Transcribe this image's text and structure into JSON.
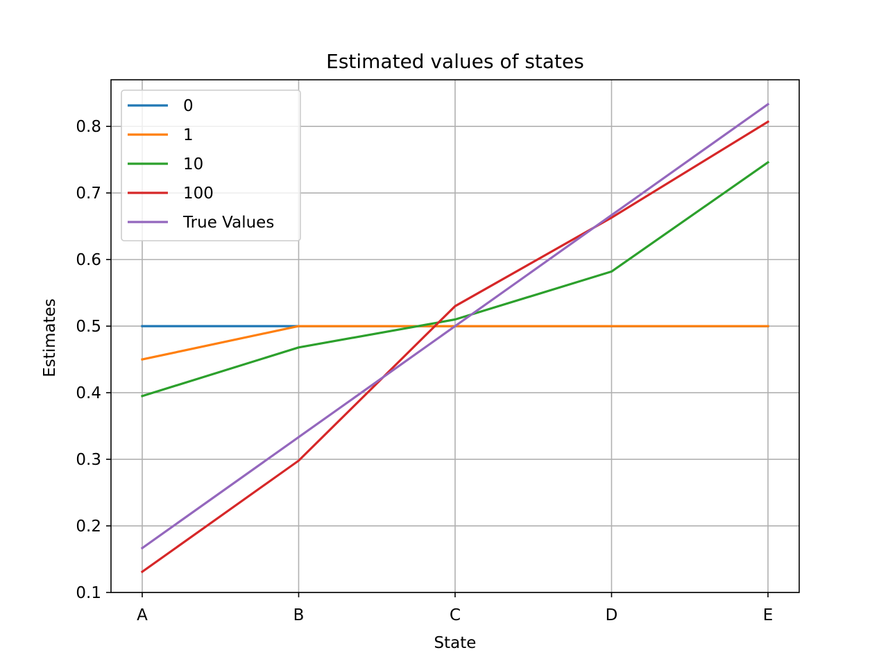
{
  "chart_data": {
    "type": "line",
    "title": "Estimated values of states",
    "xlabel": "State",
    "ylabel": "Estimates",
    "categories": [
      "A",
      "B",
      "C",
      "D",
      "E"
    ],
    "ylim": [
      0.1,
      0.87
    ],
    "yticks": [
      0.1,
      0.2,
      0.3,
      0.4,
      0.5,
      0.6,
      0.7,
      0.8
    ],
    "ytick_labels": [
      "0.1",
      "0.2",
      "0.3",
      "0.4",
      "0.5",
      "0.6",
      "0.7",
      "0.8"
    ],
    "grid": true,
    "legend_position": "top-left",
    "series": [
      {
        "name": "0",
        "color": "#1f77b4",
        "values": [
          0.5,
          0.5,
          0.5,
          0.5,
          0.5
        ]
      },
      {
        "name": "1",
        "color": "#ff7f0e",
        "values": [
          0.45,
          0.5,
          0.5,
          0.5,
          0.5
        ]
      },
      {
        "name": "10",
        "color": "#2ca02c",
        "values": [
          0.395,
          0.468,
          0.51,
          0.582,
          0.746
        ]
      },
      {
        "name": "100",
        "color": "#d62728",
        "values": [
          0.131,
          0.298,
          0.53,
          0.663,
          0.807
        ]
      },
      {
        "name": "True Values",
        "color": "#9467bd",
        "values": [
          0.1667,
          0.3333,
          0.5,
          0.6667,
          0.8333
        ]
      }
    ]
  }
}
